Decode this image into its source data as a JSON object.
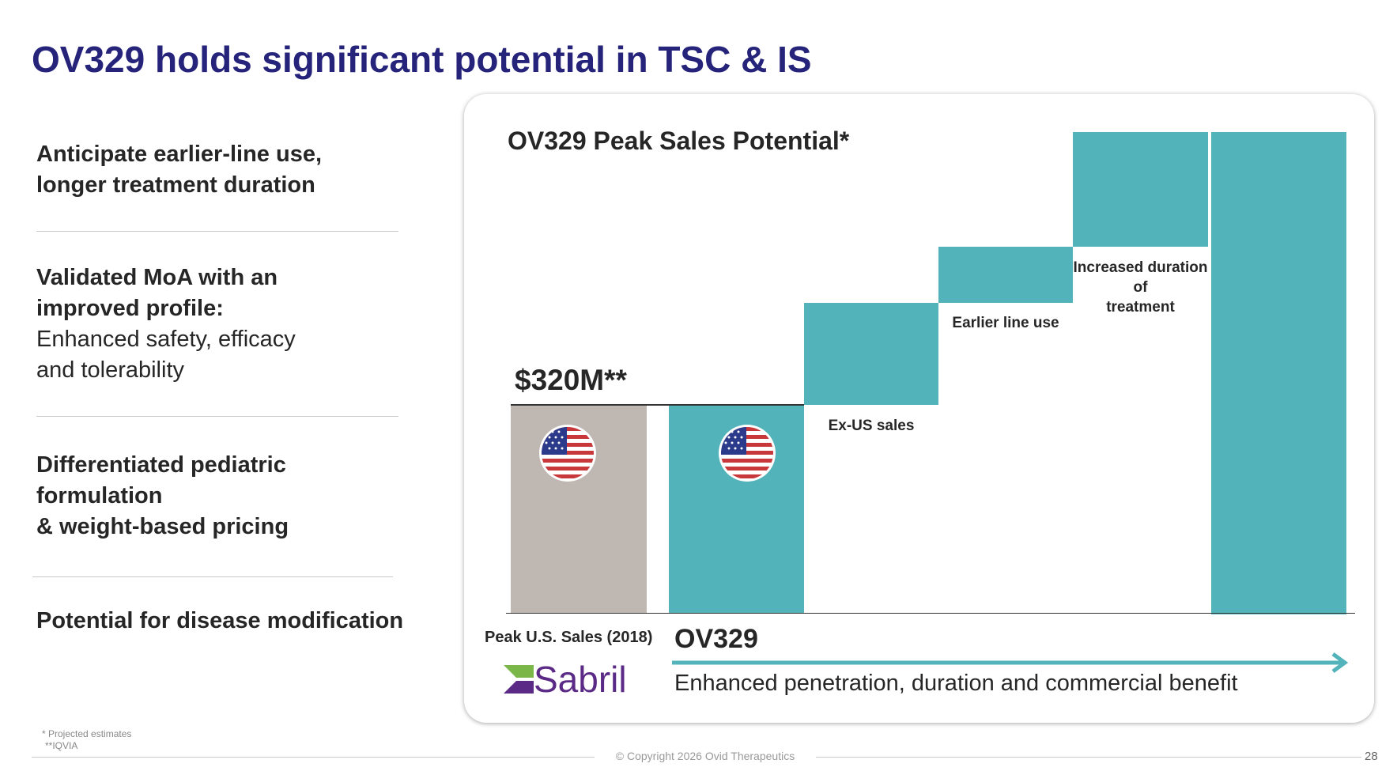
{
  "title": "OV329 holds significant potential in TSC & IS",
  "left_points": [
    {
      "lines": [
        "Anticipate earlier-line use,",
        "longer treatment duration"
      ]
    },
    {
      "lines": [
        "Validated MoA with an",
        "improved profile:"
      ],
      "sub": [
        "Enhanced safety, efficacy",
        "and tolerability"
      ]
    },
    {
      "lines": [
        "Differentiated pediatric",
        "formulation",
        "& weight-based pricing"
      ]
    },
    {
      "lines": [
        "Potential for disease modification"
      ]
    }
  ],
  "chart": {
    "title": "OV329 Peak Sales Potential*",
    "value_label": "$320M**",
    "segments": [
      "Ex-US sales",
      "Earlier line use",
      "Increased duration of",
      "treatment"
    ],
    "x_label_left": "Peak U.S. Sales (2018)",
    "x_label_right": "OV329",
    "arrow_caption": "Enhanced penetration, duration and commercial benefit",
    "logo": "Sabril",
    "colors": {
      "teal": "#52b3ba",
      "gray": "#bfb8b2",
      "title": "#25237a"
    }
  },
  "footnotes": [
    "* Projected estimates",
    "**IQVIA"
  ],
  "footer": {
    "copyright": "© Copyright 2026 Ovid Therapeutics",
    "page": "28"
  }
}
